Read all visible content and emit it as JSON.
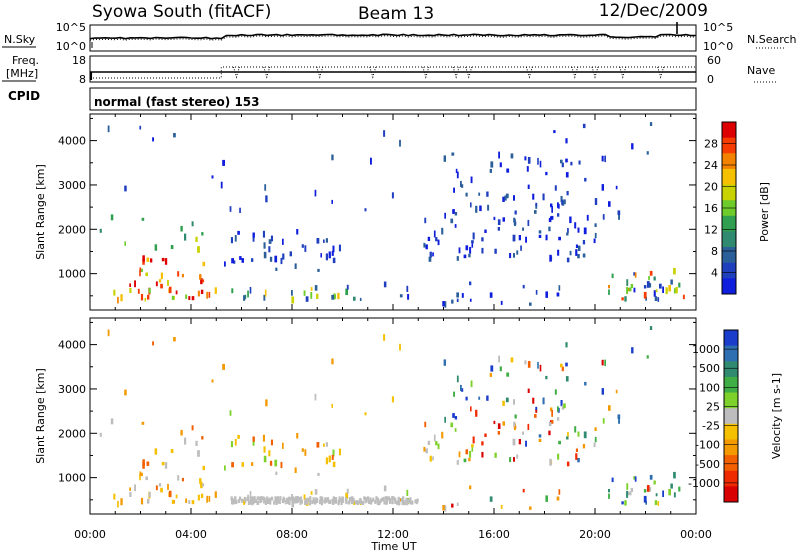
{
  "header": {
    "station": "Syowa South (fitACF)",
    "beam": "Beam 13",
    "date": "12/Dec/2009"
  },
  "top_panel": {
    "left_label": "N.Sky",
    "left_tick_top": "10^5",
    "left_tick_bottom": "10^0",
    "right_label": "N.Search",
    "right_tick_top": "10^5",
    "right_tick_bottom": "10^0"
  },
  "freq_panel": {
    "left_label_line1": "Freq.",
    "left_label_line2": "[MHz]",
    "left_tick_top": "18",
    "left_tick_bottom": "8",
    "right_label": "Nave",
    "right_tick_top": "60",
    "right_tick_bottom": "0",
    "cpid_label": "CPID"
  },
  "cpid_text": "normal (fast stereo) 153",
  "x_axis": {
    "label": "Time UT",
    "ticks": [
      "00:00",
      "04:00",
      "08:00",
      "12:00",
      "16:00",
      "20:00",
      "00:00"
    ]
  },
  "chart_data": [
    {
      "type": "heatmap",
      "panel": "power",
      "ylabel": "Slant Range [km]",
      "yticks": [
        1000,
        2000,
        3000,
        4000
      ],
      "ylim": [
        180,
        4600
      ],
      "xlim_hours": [
        0,
        24
      ],
      "colorbar_label": "Power [dB]",
      "colorbar_ticks": [
        "28",
        "24",
        "20",
        "16",
        "12",
        "8",
        "4"
      ],
      "colors_high_to_low": [
        "#dd0000",
        "#f63c00",
        "#f38200",
        "#f5c000",
        "#c8d200",
        "#6ecb2c",
        "#30a050",
        "#2f8a6f",
        "#2b5f9a",
        "#1f3fbf",
        "#0f1edd"
      ]
    },
    {
      "type": "heatmap",
      "panel": "velocity",
      "ylabel": "Slant Range [km]",
      "yticks": [
        1000,
        2000,
        3000,
        4000
      ],
      "ylim": [
        180,
        4600
      ],
      "xlim_hours": [
        0,
        24
      ],
      "colorbar_label": "Velocity [m s-1]",
      "colorbar_ticks": [
        "1000",
        "500",
        "100",
        "25",
        "-25",
        "-100",
        "-500",
        "-1000"
      ],
      "colors_high_to_low": [
        "#1a3dcc",
        "#2e6fb2",
        "#2f8a6f",
        "#3fae45",
        "#7ed12a",
        "#bdbdbd",
        "#f5c000",
        "#f39a00",
        "#f36000",
        "#f02a00",
        "#d80000"
      ]
    }
  ]
}
